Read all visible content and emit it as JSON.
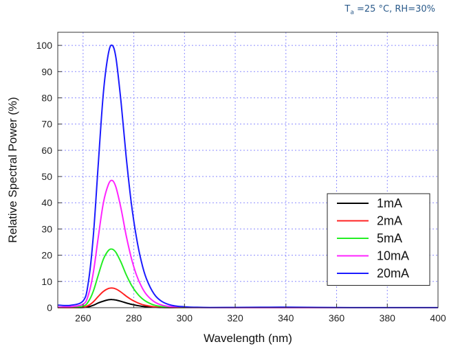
{
  "conditions": {
    "t_symbol": "T",
    "t_subscript": "a",
    "text": " =25 °C, RH=30%"
  },
  "chart_data": {
    "type": "line",
    "xlabel": "Wavelength (nm)",
    "ylabel": "Relative Spectral Power (%)",
    "xlim": [
      250,
      400
    ],
    "ylim": [
      0,
      105
    ],
    "xticks": [
      260,
      280,
      300,
      320,
      340,
      360,
      380,
      400
    ],
    "yticks": [
      0,
      10,
      20,
      30,
      40,
      50,
      60,
      70,
      80,
      90,
      100
    ],
    "grid": true,
    "legend_position": "right-middle",
    "x": [
      250,
      255,
      260,
      262,
      264,
      266,
      268,
      270,
      271.5,
      273,
      275,
      277,
      279,
      281,
      283,
      285,
      288,
      291,
      295,
      300,
      305,
      310,
      320,
      330,
      340,
      360,
      380,
      400
    ],
    "series": [
      {
        "name": "1mA",
        "color": "#000000",
        "values": [
          0,
          0,
          0.05,
          0.3,
          0.9,
          1.8,
          2.5,
          3.0,
          3.1,
          2.9,
          2.4,
          1.8,
          1.3,
          0.9,
          0.55,
          0.35,
          0.15,
          0.05,
          0,
          0,
          0,
          0,
          0,
          0,
          0,
          0,
          0,
          0
        ]
      },
      {
        "name": "2mA",
        "color": "#ff2020",
        "values": [
          0,
          0,
          0.2,
          0.8,
          2.2,
          4.3,
          6.2,
          7.3,
          7.5,
          7.1,
          5.9,
          4.4,
          3.1,
          2.1,
          1.3,
          0.8,
          0.35,
          0.15,
          0.05,
          0,
          0,
          0,
          0,
          0,
          0,
          0,
          0,
          0
        ]
      },
      {
        "name": "5mA",
        "color": "#22ee22",
        "values": [
          0.1,
          0.2,
          0.6,
          2.2,
          6.2,
          12.5,
          18.5,
          21.8,
          22.3,
          21.0,
          17.2,
          12.6,
          8.7,
          5.8,
          3.7,
          2.3,
          1.0,
          0.45,
          0.15,
          0.05,
          0,
          0,
          0,
          0,
          0,
          0,
          0,
          0
        ]
      },
      {
        "name": "10mA",
        "color": "#ff22ff",
        "values": [
          0.2,
          0.4,
          1.3,
          4.6,
          13.2,
          27.0,
          40.0,
          47.0,
          48.5,
          45.8,
          37.6,
          27.5,
          19.0,
          12.6,
          8.1,
          5.0,
          2.3,
          1.0,
          0.35,
          0.1,
          0.03,
          0,
          0,
          0,
          0,
          0,
          0,
          0
        ]
      },
      {
        "name": "20mA",
        "color": "#1a1aff",
        "values": [
          1.0,
          0.9,
          2.6,
          9.2,
          27.0,
          55.0,
          82.0,
          97.0,
          100,
          95.0,
          78.0,
          57.5,
          40.0,
          27.0,
          17.5,
          11.0,
          5.2,
          2.4,
          0.9,
          0.35,
          0.15,
          0.08,
          0.1,
          0.15,
          0.18,
          0.05,
          0.02,
          0.02
        ]
      }
    ]
  }
}
